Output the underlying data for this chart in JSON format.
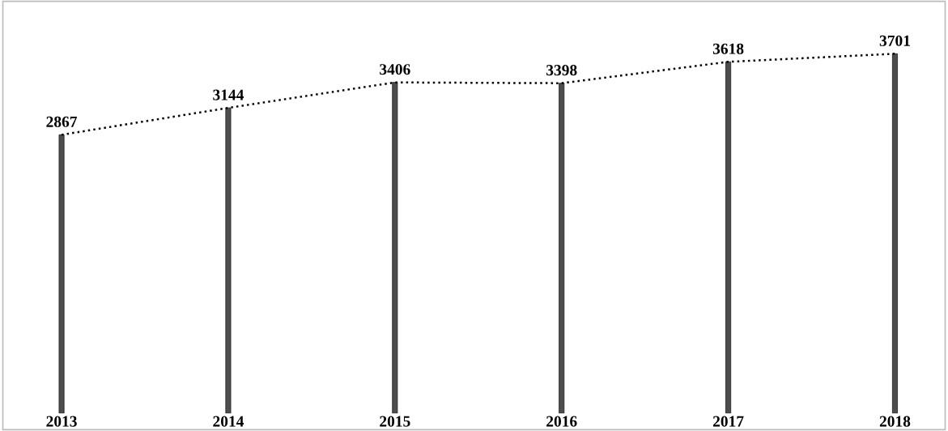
{
  "chart_data": {
    "type": "bar",
    "categories": [
      "2013",
      "2014",
      "2015",
      "2016",
      "2017",
      "2018"
    ],
    "series": [
      {
        "color": "#4d4d4d",
        "values": [
          2867,
          3144,
          3406,
          3398,
          3618,
          3701
        ],
        "value_labels": [
          "2867",
          "3144",
          "3406",
          "3398",
          "3618",
          "3701"
        ]
      },
      {
        "type": "line",
        "color": "#000000",
        "line_style": "dotted",
        "values": [
          2867,
          3144,
          3406,
          3398,
          3618,
          3701
        ]
      }
    ],
    "grid": false,
    "legend": false
  }
}
